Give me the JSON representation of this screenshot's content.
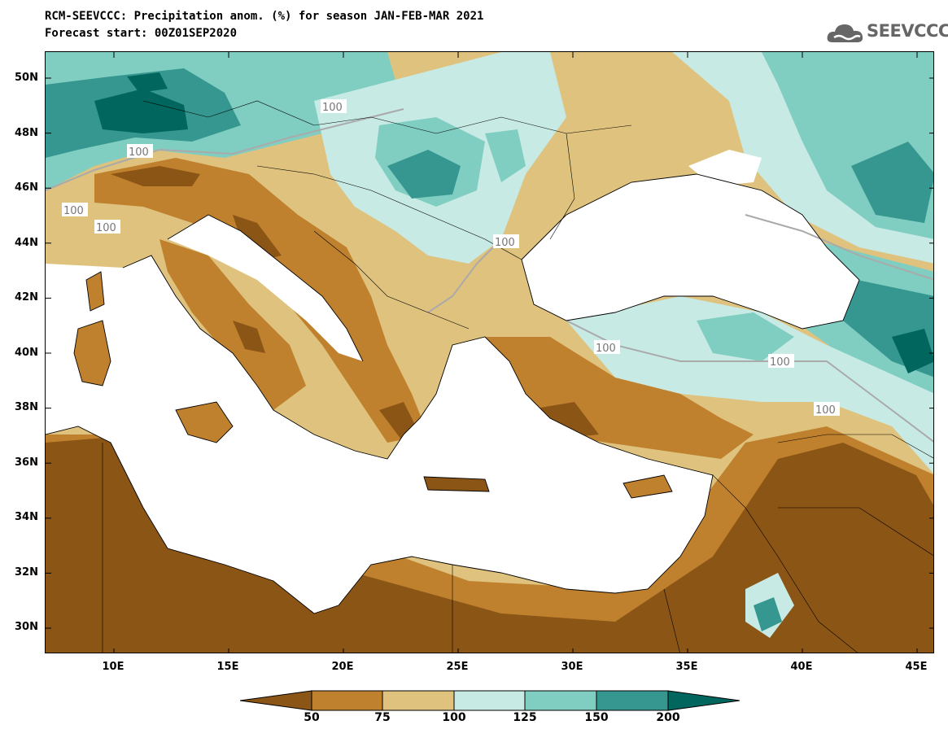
{
  "title_line1": "RCM-SEEVCCC: Precipitation anom. (%) for season JAN-FEB-MAR 2021",
  "title_line2": "Forecast start: 00Z01SEP2020",
  "logo": {
    "text": "SEEVCCC",
    "icon": "cloud-logo-icon"
  },
  "map": {
    "lat_labels": [
      "50N",
      "48N",
      "46N",
      "44N",
      "42N",
      "40N",
      "38N",
      "36N",
      "34N",
      "32N",
      "30N"
    ],
    "lon_labels": [
      "10E",
      "15E",
      "20E",
      "25E",
      "30E",
      "35E",
      "40E",
      "45E"
    ],
    "contour_label": "100",
    "colors": {
      "lt50": "#8b5516",
      "50_75": "#bf812d",
      "75_100": "#dfc27d",
      "100_125": "#c7eae5",
      "125_150": "#80cdc1",
      "150_200": "#35978f",
      "gt200": "#01665e",
      "sea": "#ffffff"
    }
  },
  "colorbar": {
    "labels": [
      "50",
      "75",
      "100",
      "125",
      "150",
      "200"
    ],
    "colors": [
      "#8b5516",
      "#bf812d",
      "#dfc27d",
      "#c7eae5",
      "#80cdc1",
      "#35978f",
      "#01665e"
    ]
  }
}
